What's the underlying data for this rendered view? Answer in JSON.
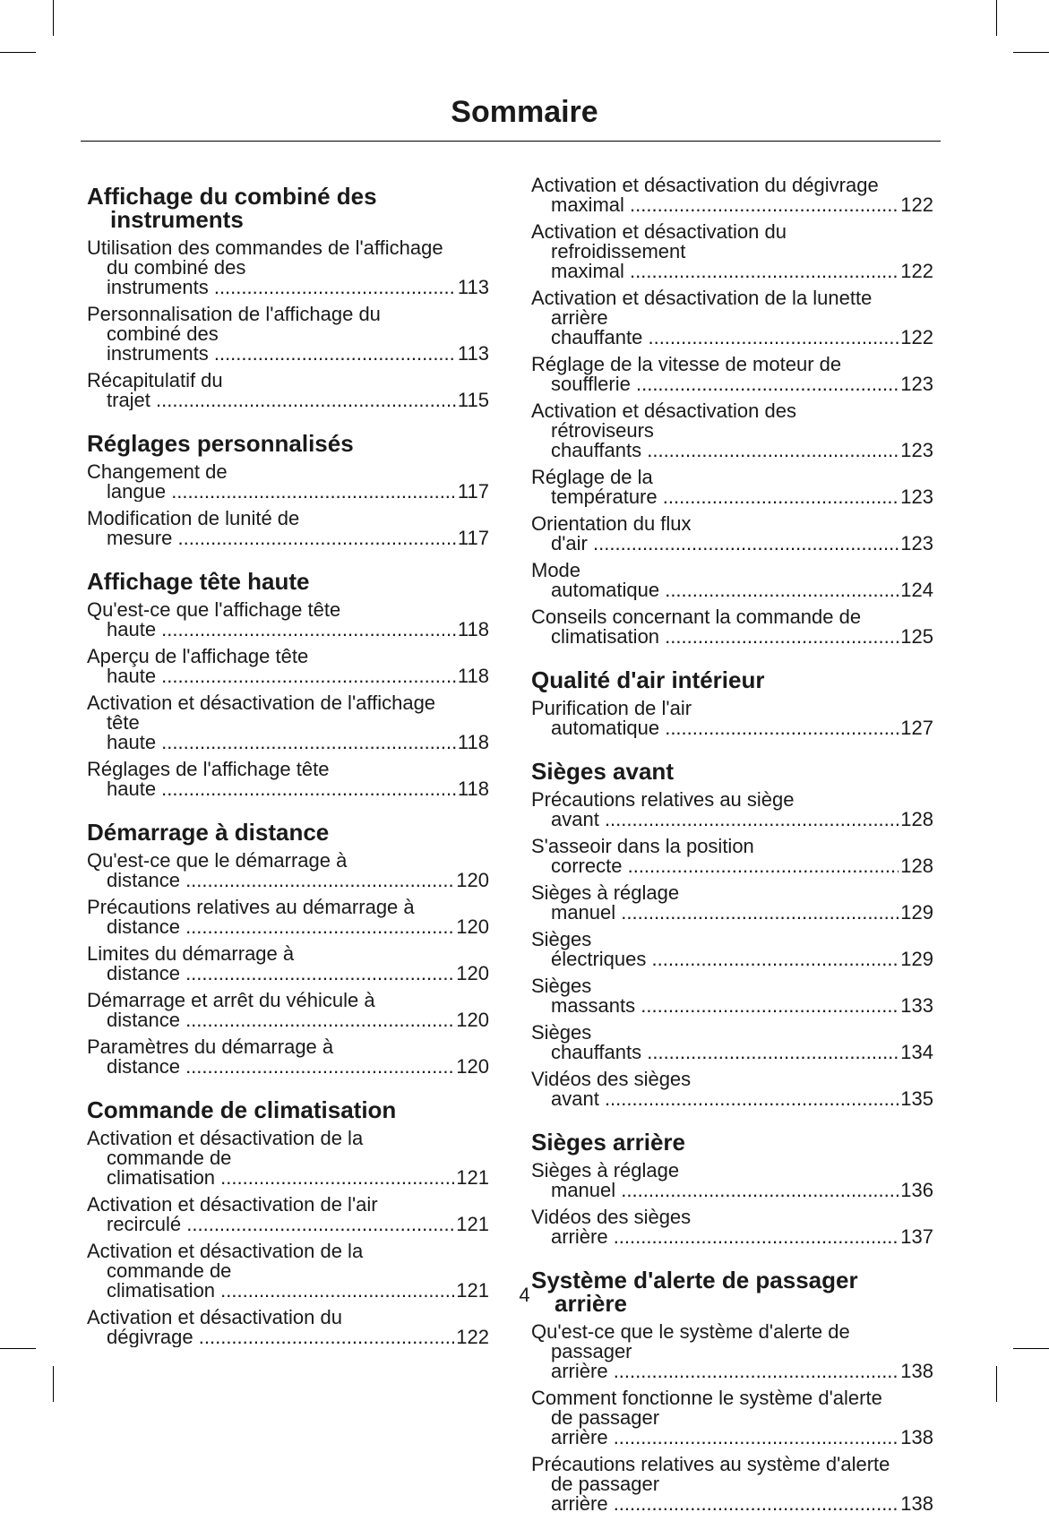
{
  "header": {
    "title": "Sommaire"
  },
  "columns": [
    {
      "sections": [
        {
          "heading": "Affichage du combiné des instruments",
          "entries": [
            {
              "text": "Utilisation des commandes de l'affichage du combiné des instruments",
              "page": 113
            },
            {
              "text": "Personnalisation de l'affichage du combiné des instruments",
              "page": 113
            },
            {
              "text": "Récapitulatif du trajet",
              "page": 115
            }
          ]
        },
        {
          "heading": "Réglages personnalisés",
          "entries": [
            {
              "text": "Changement de langue",
              "page": 117
            },
            {
              "text": "Modification de lunité de mesure",
              "page": 117
            }
          ]
        },
        {
          "heading": "Affichage tête haute",
          "entries": [
            {
              "text": "Qu'est-ce que l'affichage tête haute",
              "page": 118
            },
            {
              "text": "Aperçu de l'affichage tête haute",
              "page": 118
            },
            {
              "text": "Activation et désactivation de l'affichage tête haute",
              "page": 118
            },
            {
              "text": "Réglages de l'affichage tête haute",
              "page": 118
            }
          ]
        },
        {
          "heading": "Démarrage à distance",
          "entries": [
            {
              "text": "Qu'est-ce que le démarrage à distance",
              "page": 120
            },
            {
              "text": "Précautions relatives au démarrage à distance",
              "page": 120
            },
            {
              "text": "Limites du démarrage à distance",
              "page": 120
            },
            {
              "text": "Démarrage et arrêt du véhicule à distance",
              "page": 120
            },
            {
              "text": "Paramètres du démarrage à distance",
              "page": 120
            }
          ]
        },
        {
          "heading": "Commande de climatisation",
          "entries": [
            {
              "text": "Activation et désactivation de la commande de climatisation",
              "page": 121
            },
            {
              "text": "Activation et désactivation de l'air recirculé",
              "page": 121
            },
            {
              "text": "Activation et désactivation de la commande de climatisation",
              "page": 121
            },
            {
              "text": "Activation et désactivation du dégivrage",
              "page": 122
            }
          ]
        }
      ]
    },
    {
      "sections": [
        {
          "entries": [
            {
              "text": "Activation et désactivation du dégivrage maximal",
              "page": 122
            },
            {
              "text": "Activation et désactivation du refroidissement maximal",
              "page": 122
            },
            {
              "text": "Activation et désactivation de la lunette arrière chauffante",
              "page": 122
            },
            {
              "text": "Réglage de la vitesse de moteur de soufflerie",
              "page": 123
            },
            {
              "text": "Activation et désactivation des rétroviseurs chauffants",
              "page": 123
            },
            {
              "text": "Réglage de la température",
              "page": 123
            },
            {
              "text": "Orientation du flux d'air",
              "page": 123
            },
            {
              "text": "Mode automatique",
              "page": 124
            },
            {
              "text": "Conseils concernant la commande de climatisation",
              "page": 125
            }
          ]
        },
        {
          "heading": "Qualité d'air intérieur",
          "entries": [
            {
              "text": "Purification de l'air automatique",
              "page": 127
            }
          ]
        },
        {
          "heading": "Sièges avant",
          "entries": [
            {
              "text": "Précautions relatives au siège avant",
              "page": 128
            },
            {
              "text": "S'asseoir dans la position correcte",
              "page": 128
            },
            {
              "text": "Sièges à réglage manuel",
              "page": 129
            },
            {
              "text": "Sièges électriques",
              "page": 129
            },
            {
              "text": "Sièges massants",
              "page": 133
            },
            {
              "text": "Sièges chauffants",
              "page": 134
            },
            {
              "text": "Vidéos des sièges avant",
              "page": 135
            }
          ]
        },
        {
          "heading": "Sièges arrière",
          "entries": [
            {
              "text": "Sièges à réglage manuel",
              "page": 136
            },
            {
              "text": "Vidéos des sièges arrière",
              "page": 137
            }
          ]
        },
        {
          "heading": "Système d'alerte de passager arrière",
          "entries": [
            {
              "text": "Qu'est-ce que le système d'alerte de passager arrière",
              "page": 138
            },
            {
              "text": "Comment fonctionne le système d'alerte de passager arrière",
              "page": 138
            },
            {
              "text": "Précautions relatives au système d'alerte de passager arrière",
              "page": 138
            }
          ]
        }
      ]
    }
  ],
  "footer": {
    "page_number": "4"
  }
}
